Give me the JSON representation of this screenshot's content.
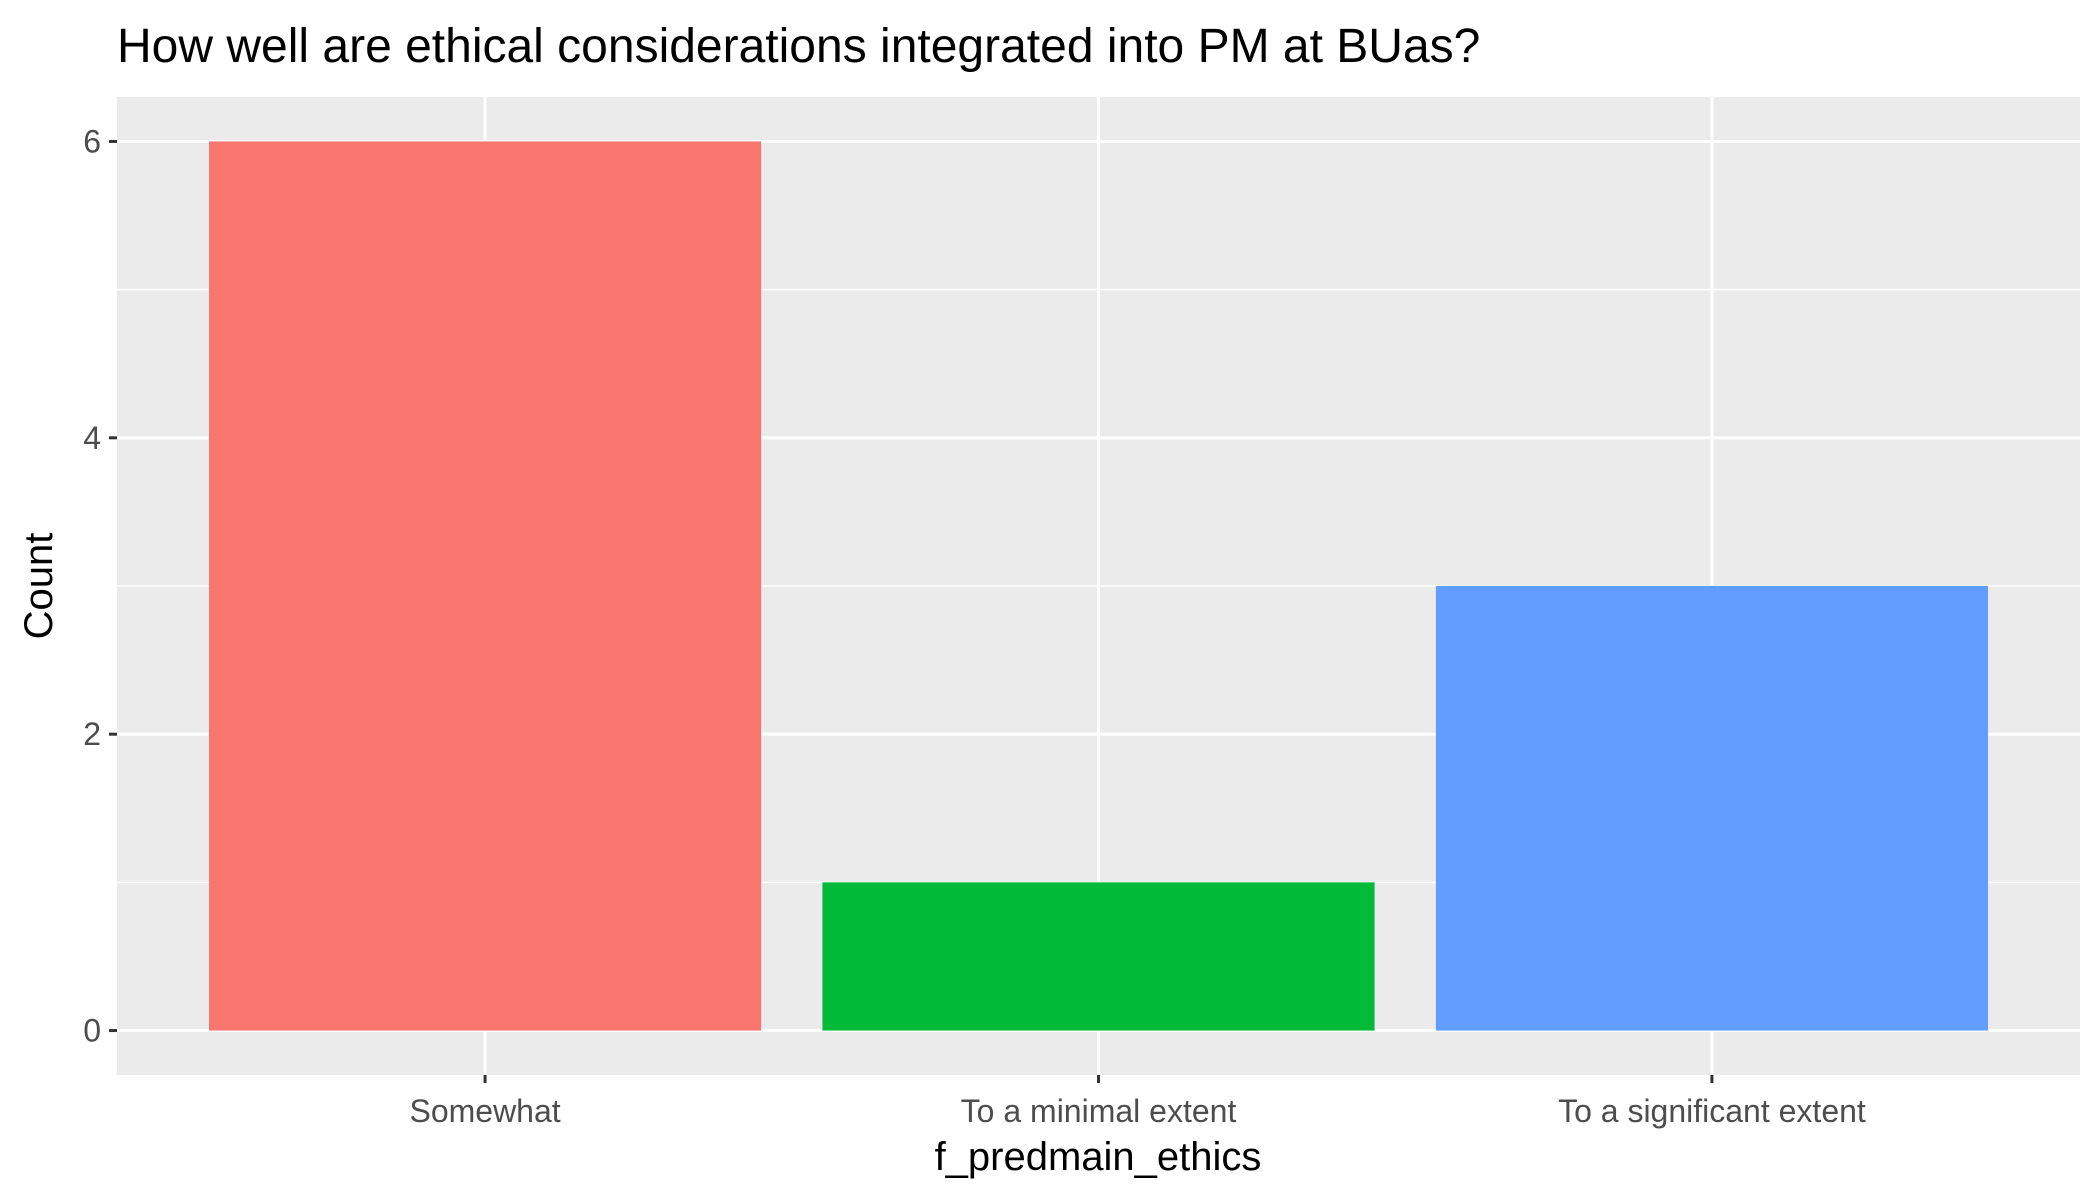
{
  "chart_data": {
    "type": "bar",
    "title": "How well are ethical considerations integrated into PM at BUas?",
    "xlabel": "f_predmain_ethics",
    "ylabel": "Count",
    "categories": [
      "Somewhat",
      "To a minimal extent",
      "To a significant extent"
    ],
    "values": [
      6,
      1,
      3
    ],
    "colors": [
      "#F8766D",
      "#00BA38",
      "#619CFF"
    ],
    "ylim": [
      -0.3,
      6.3
    ],
    "yticks": [
      0,
      2,
      4,
      6
    ],
    "ytick_labels": [
      "0",
      "2",
      "4",
      "6"
    ],
    "grid": true,
    "legend": "none",
    "panel_background": "#EBEBEB",
    "grid_color": "#FFFFFF"
  }
}
